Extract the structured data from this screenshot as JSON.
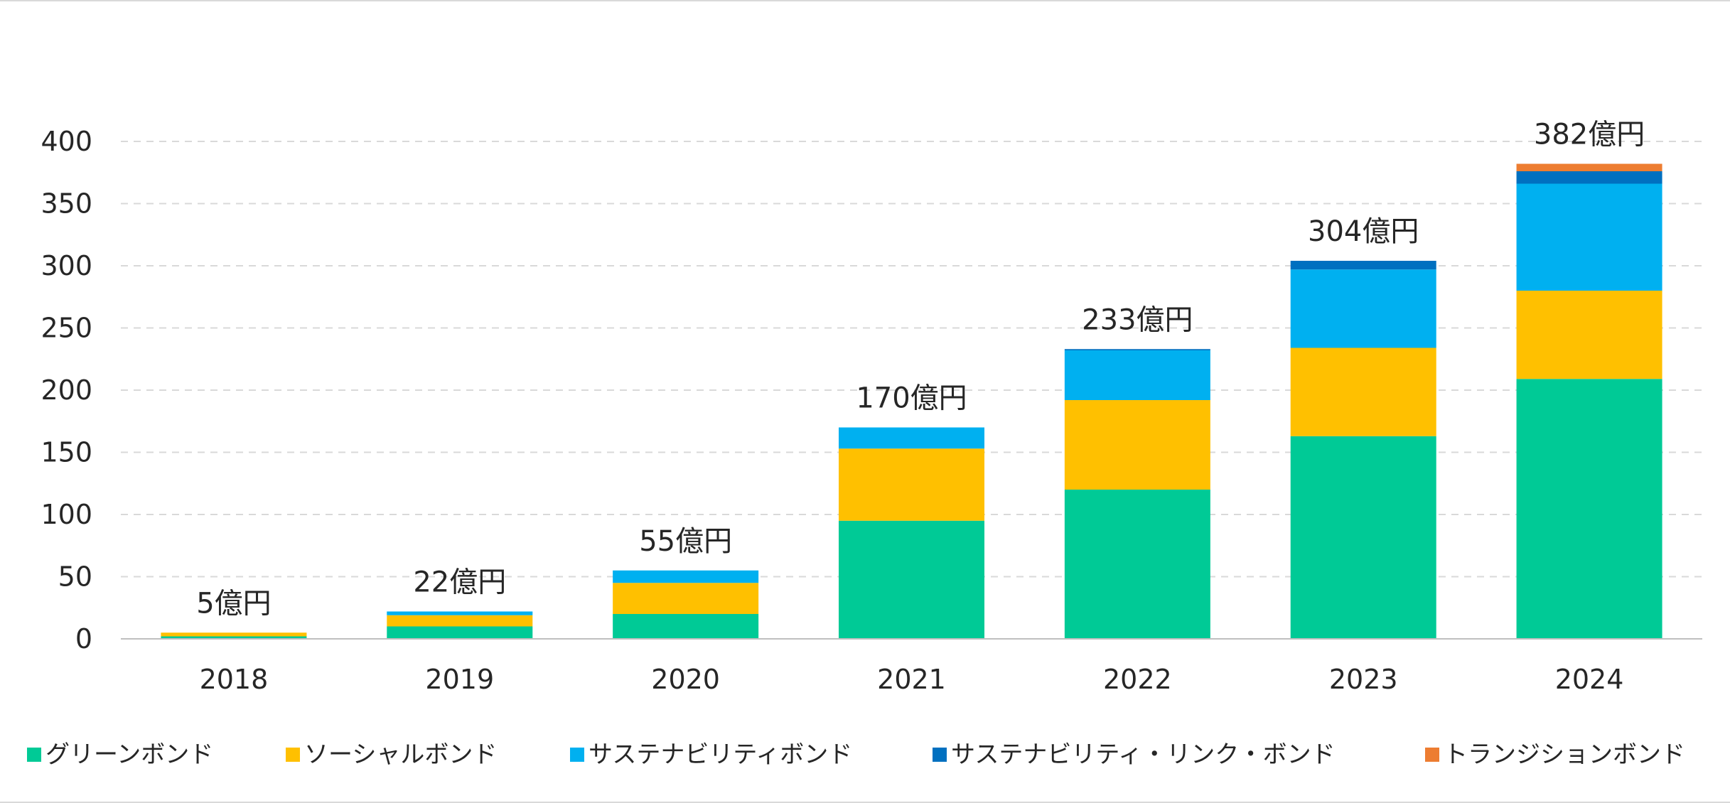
{
  "chart_data": {
    "type": "bar",
    "stacked": true,
    "categories": [
      "2018",
      "2019",
      "2020",
      "2021",
      "2022",
      "2023",
      "2024"
    ],
    "totals": [
      "5億円",
      "22億円",
      "55億円",
      "170億円",
      "233億円",
      "304億円",
      "382億円"
    ],
    "series": [
      {
        "name": "グリーンボンド",
        "color": "#00ca96",
        "values": [
          2,
          10,
          20,
          95,
          120,
          163,
          209
        ]
      },
      {
        "name": "ソーシャルボンド",
        "color": "#ffc000",
        "values": [
          3,
          9,
          25,
          58,
          72,
          71,
          71
        ]
      },
      {
        "name": "サステナビリティボンド",
        "color": "#00b0f0",
        "values": [
          0,
          3,
          10,
          17,
          40,
          63,
          86
        ]
      },
      {
        "name": "サステナビリティ・リンク・ボンド",
        "color": "#0070c0",
        "values": [
          0,
          0,
          0,
          0,
          1,
          7,
          10
        ]
      },
      {
        "name": "トランジションボンド",
        "color": "#ed7d31",
        "values": [
          0,
          0,
          0,
          0,
          0,
          0,
          6
        ]
      }
    ],
    "ylim": [
      0,
      400
    ],
    "yticks": [
      "0",
      "50",
      "100",
      "150",
      "200",
      "250",
      "300",
      "350",
      "400"
    ],
    "grid": true,
    "legend_position": "bottom",
    "title": "",
    "xlabel": "",
    "ylabel": ""
  }
}
